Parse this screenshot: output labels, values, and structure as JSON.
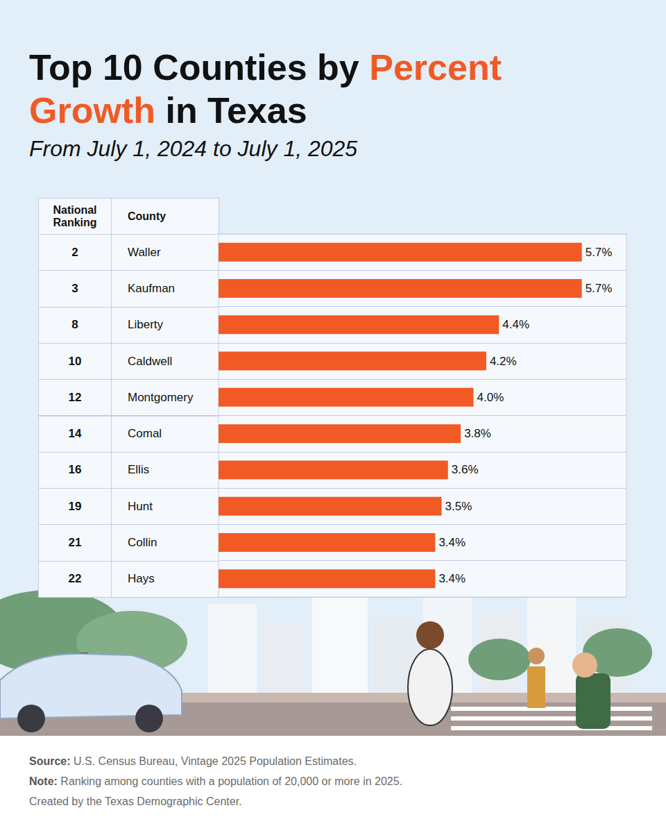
{
  "chart_data": {
    "type": "bar",
    "orientation": "horizontal",
    "title": "Top 10 Counties by Percent Growth in Texas",
    "title_highlight": "Percent Growth",
    "subtitle": "From July 1, 2024 to July 1, 2025",
    "ranking_header": "National Ranking",
    "category_header": "County",
    "rankings": [
      2,
      3,
      8,
      10,
      12,
      14,
      16,
      19,
      21,
      22
    ],
    "categories": [
      "Waller",
      "Kaufman",
      "Liberty",
      "Caldwell",
      "Montgomery",
      "Comal",
      "Ellis",
      "Hunt",
      "Collin",
      "Hays"
    ],
    "values": [
      5.7,
      5.7,
      4.4,
      4.2,
      4.0,
      3.8,
      3.6,
      3.5,
      3.4,
      3.4
    ],
    "value_labels": [
      "5.7%",
      "5.7%",
      "4.4%",
      "4.2%",
      "4.0%",
      "3.8%",
      "3.6%",
      "3.5%",
      "3.4%",
      "3.4%"
    ],
    "color": "#f15a24",
    "xlim": [
      0,
      6.4
    ],
    "grid": true,
    "data_labels": true,
    "tick_labels": "y",
    "source_label": "Source:",
    "source": "U.S. Census Bureau, Vintage 2025 Population Estimates.",
    "note_label": "Note:",
    "note": "Ranking among counties with a population of 20,000 or more in 2025.",
    "credit": "Created by the Texas Demographic Center."
  }
}
